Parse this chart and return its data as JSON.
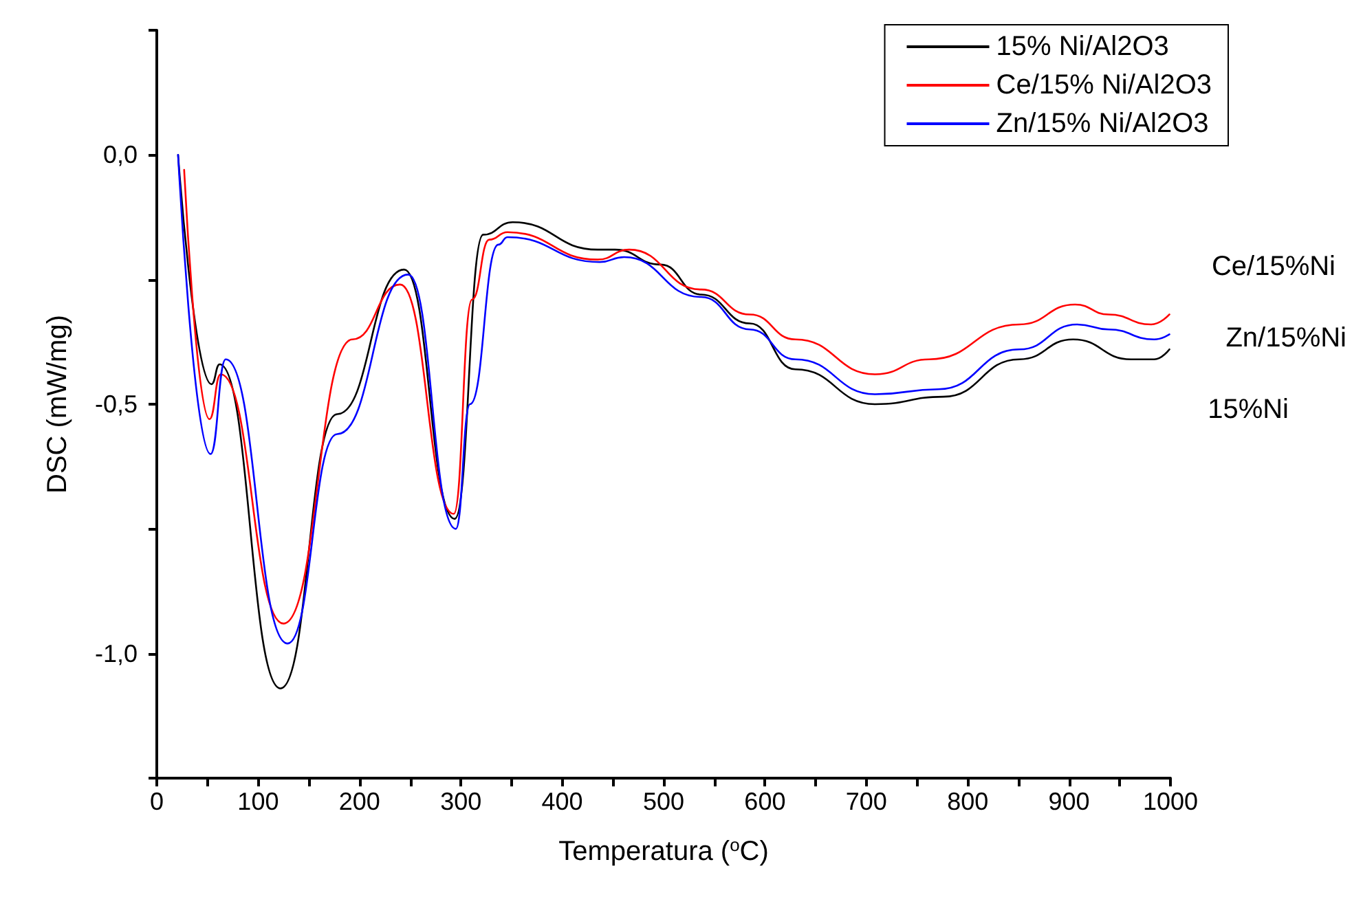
{
  "chart_data": {
    "type": "line",
    "xlabel": "Temperatura ($^{o}$C)",
    "ylabel": "DSC (mW/mg)",
    "xlim": [
      0,
      1000
    ],
    "xticks": [
      0,
      {
        "value": 50,
        "label": null
      },
      100,
      {
        "value": 150,
        "label": null
      },
      200,
      {
        "value": 250,
        "label": null
      },
      300,
      {
        "value": 350,
        "label": null
      },
      400,
      {
        "value": 450,
        "label": null
      },
      500,
      {
        "value": 550,
        "label": null
      },
      600,
      {
        "value": 650,
        "label": null
      },
      700,
      {
        "value": 750,
        "label": null
      },
      800,
      {
        "value": 850,
        "label": null
      },
      900,
      {
        "value": 950,
        "label": null
      },
      1000
    ],
    "ylim": [
      -1.25,
      0.25
    ],
    "yticks": [
      {
        "value": -1.25,
        "label": null
      },
      {
        "value": -1,
        "label": "-1,0"
      },
      {
        "value": -0.75,
        "label": null
      },
      {
        "value": -0.5,
        "label": "-0,5"
      },
      {
        "value": -0.25,
        "label": null
      },
      {
        "value": 0,
        "label": "0,0"
      },
      {
        "value": 0.25,
        "label": null
      }
    ],
    "grid": false,
    "legend": "top right",
    "marker": "none",
    "line_style": "solid",
    "annotations": [
      "Ce/15%Ni",
      "Zn/15%Ni",
      "15%Ni"
    ],
    "series": [
      {
        "name": "15% Ni/Al2O3",
        "color": "#000000",
        "x": [
          21,
          54,
          62,
          122,
          178,
          244,
          294,
          322,
          351,
          435,
          452,
          497,
          537,
          585,
          630,
          709,
          776,
          851,
          904,
          961,
          984,
          999
        ],
        "values": [
          0,
          -0.46,
          -0.42,
          -1.07,
          -0.52,
          -0.23,
          -0.73,
          -0.16,
          -0.135,
          -0.19,
          -0.19,
          -0.22,
          -0.28,
          -0.338,
          -0.43,
          -0.5,
          -0.485,
          -0.41,
          -0.37,
          -0.41,
          -0.41,
          -0.39
        ]
      },
      {
        "name": "Ce/15% Ni/Al2O3",
        "color": "#ff0000",
        "x": [
          27,
          52,
          63,
          125,
          193,
          240,
          293,
          311,
          328,
          346,
          435,
          466,
          537,
          585,
          630,
          709,
          762,
          851,
          906,
          939,
          981,
          999
        ],
        "values": [
          -0.03,
          -0.53,
          -0.44,
          -0.94,
          -0.37,
          -0.26,
          -0.72,
          -0.29,
          -0.17,
          -0.155,
          -0.21,
          -0.19,
          -0.27,
          -0.32,
          -0.37,
          -0.44,
          -0.41,
          -0.34,
          -0.3,
          -0.32,
          -0.34,
          -0.32
        ]
      },
      {
        "name": "Zn/15% Ni/Al2O3",
        "color": "#0000ff",
        "x": [
          21,
          53,
          68,
          129,
          178,
          248,
          295,
          309,
          337,
          346,
          437,
          461,
          537,
          585,
          630,
          709,
          771,
          851,
          908,
          939,
          984,
          999
        ],
        "values": [
          0,
          -0.6,
          -0.41,
          -0.98,
          -0.56,
          -0.24,
          -0.75,
          -0.5,
          -0.18,
          -0.165,
          -0.215,
          -0.205,
          -0.285,
          -0.35,
          -0.41,
          -0.48,
          -0.47,
          -0.39,
          -0.34,
          -0.35,
          -0.37,
          -0.36
        ]
      }
    ]
  }
}
